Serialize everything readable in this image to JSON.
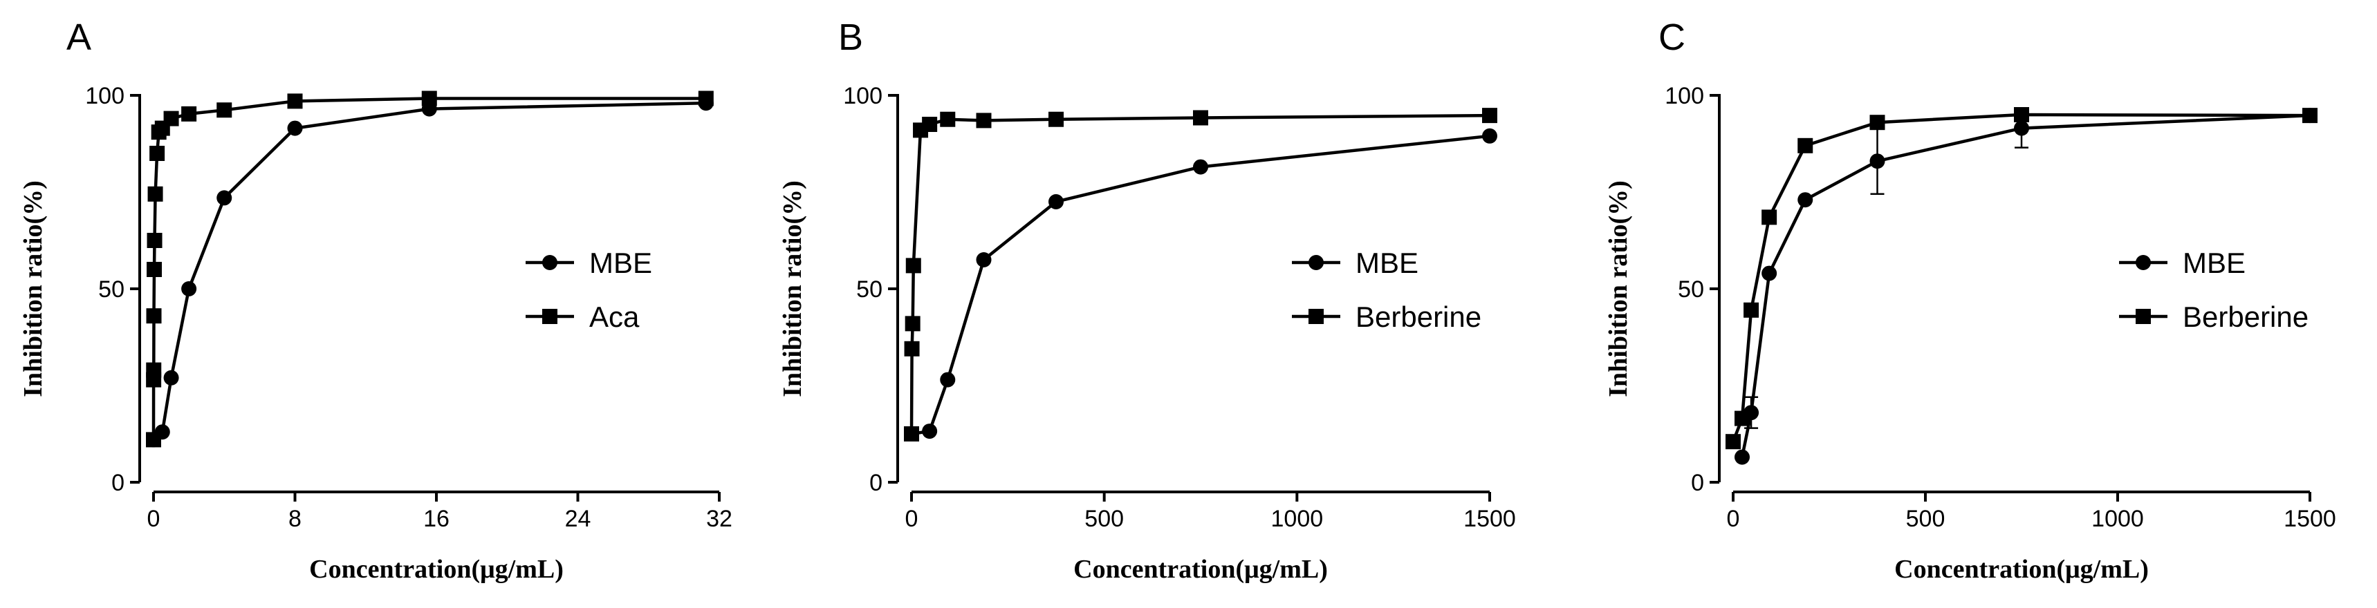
{
  "chart_data": [
    {
      "type": "line",
      "panel": "A",
      "xlabel": "Concentration(μg/mL)",
      "ylabel": "Inhibition ratio(%)",
      "xlim": [
        0,
        32
      ],
      "ylim": [
        0,
        100
      ],
      "xticks": [
        0,
        8,
        16,
        24,
        32
      ],
      "yticks": [
        0,
        50,
        100
      ],
      "legend_position": "center-right",
      "series": [
        {
          "name": "MBE",
          "marker": "circle",
          "x": [
            0.0,
            0.5,
            1.0,
            2.0,
            4.0,
            8.0,
            15.6,
            31.25
          ],
          "y": [
            11,
            13,
            27,
            50,
            73.5,
            91.5,
            96.5,
            98
          ]
        },
        {
          "name": "Aca",
          "marker": "square",
          "x": [
            0.0,
            0.005,
            0.01,
            0.02,
            0.04,
            0.06,
            0.1,
            0.2,
            0.3,
            0.5,
            1.0,
            2.0,
            4.0,
            8.0,
            15.6,
            31.25
          ],
          "y": [
            11,
            26.5,
            29,
            43,
            55,
            62.5,
            74.5,
            85,
            90.5,
            91.5,
            94,
            95.2,
            96.2,
            98.5,
            99.2,
            99.2
          ]
        }
      ]
    },
    {
      "type": "line",
      "panel": "B",
      "xlabel": "Concentration(μg/mL)",
      "ylabel": "Inhibition ratio(%)",
      "xlim": [
        0,
        1500
      ],
      "ylim": [
        0,
        100
      ],
      "xticks": [
        0,
        500,
        1000,
        1500
      ],
      "yticks": [
        0,
        50,
        100
      ],
      "legend_position": "center-right",
      "series": [
        {
          "name": "MBE",
          "marker": "circle",
          "x": [
            0,
            46.9,
            93.8,
            187.5,
            375,
            750,
            1500
          ],
          "y": [
            12.5,
            13.2,
            26.5,
            57.5,
            72.5,
            81.5,
            89.5
          ]
        },
        {
          "name": "Berberine",
          "marker": "square",
          "x": [
            0,
            1,
            3,
            5,
            23.4,
            46.9,
            93.8,
            187.5,
            375,
            750,
            1500
          ],
          "y": [
            12.5,
            34.5,
            41,
            56,
            91,
            92.5,
            93.8,
            93.5,
            93.8,
            94.2,
            94.8
          ]
        }
      ]
    },
    {
      "type": "line",
      "panel": "C",
      "xlabel": "Concentration(μg/mL)",
      "ylabel": "Inhibition ratio(%)",
      "xlim": [
        0,
        1500
      ],
      "ylim": [
        0,
        100
      ],
      "xticks": [
        0,
        500,
        1000,
        1500
      ],
      "yticks": [
        0,
        50,
        100
      ],
      "legend_position": "center-right",
      "series": [
        {
          "name": "MBE",
          "marker": "circle",
          "x": [
            23.4,
            46.9,
            93.8,
            187.5,
            375,
            750,
            1500
          ],
          "y": [
            6.5,
            18,
            54,
            73,
            83,
            91.5,
            94.8
          ],
          "err": [
            0,
            4,
            0,
            0,
            8.5,
            5,
            0
          ]
        },
        {
          "name": "Berberine",
          "marker": "square",
          "x": [
            0,
            23.4,
            46.9,
            93.8,
            187.5,
            375,
            750,
            1500
          ],
          "y": [
            10.5,
            16.5,
            44.5,
            68.5,
            87,
            93,
            95,
            94.8
          ],
          "err": [
            0,
            0,
            0,
            0,
            0,
            0,
            0,
            0
          ]
        }
      ]
    }
  ]
}
